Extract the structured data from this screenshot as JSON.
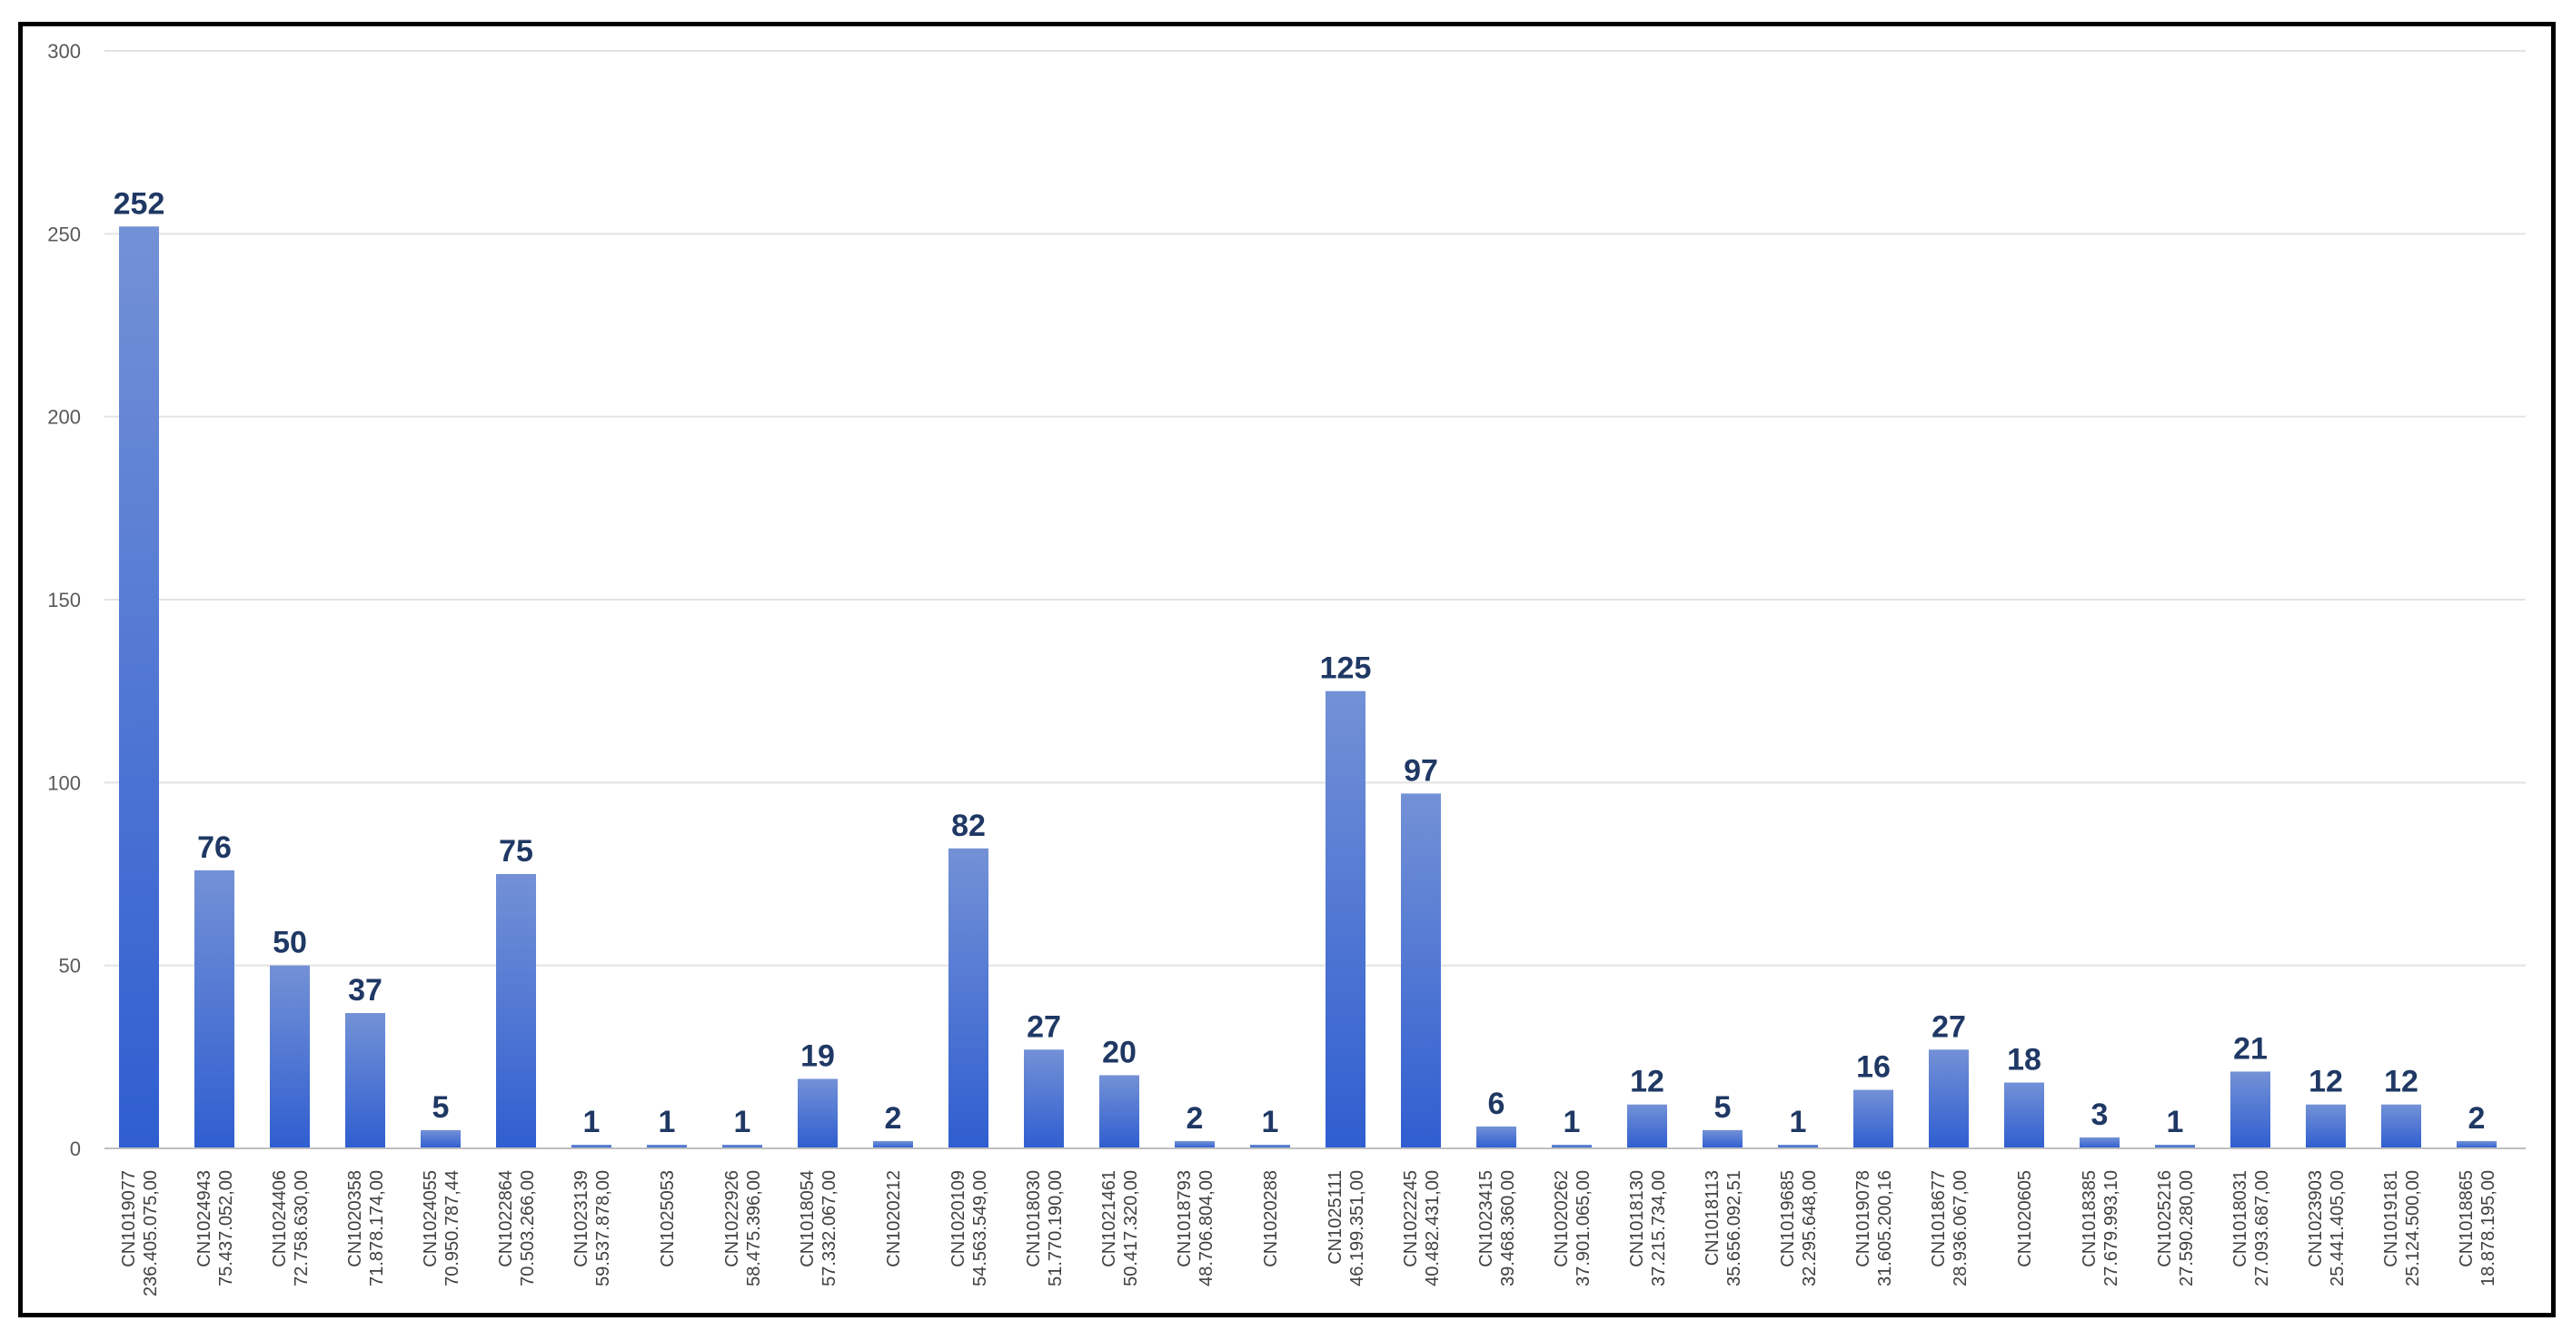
{
  "chart_data": {
    "type": "bar",
    "title": "",
    "xlabel": "",
    "ylabel": "",
    "ylim": [
      0,
      300
    ],
    "yticks": [
      0,
      50,
      100,
      150,
      200,
      250,
      300
    ],
    "grid": true,
    "legend": "none",
    "bar_color_top": "#7391d6",
    "bar_color_bottom": "#2f5ed0",
    "data_label_color": "#1f3864",
    "categories": [
      [
        "CN1019077",
        "236.405.075,00"
      ],
      [
        "CN1024943",
        "75.437.052,00"
      ],
      [
        "CN1024406",
        "72.758.630,00"
      ],
      [
        "CN1020358",
        "71.878.174,00"
      ],
      [
        "CN1024055",
        "70.950.787,44"
      ],
      [
        "CN1022864",
        "70.503.266,00"
      ],
      [
        "CN1023139",
        "59.537.878,00"
      ],
      [
        "CN1025053",
        ""
      ],
      [
        "CN1022926",
        "58.475.396,00"
      ],
      [
        "CN1018054",
        "57.332.067,00"
      ],
      [
        "CN1020212",
        ""
      ],
      [
        "CN1020109",
        "54.563.549,00"
      ],
      [
        "CN1018030",
        "51.770.190,00"
      ],
      [
        "CN1021461",
        "50.417.320,00"
      ],
      [
        "CN1018793",
        "48.706.804,00"
      ],
      [
        "CN1020288",
        ""
      ],
      [
        "CN1025111",
        "46.199.351,00"
      ],
      [
        "CN1022245",
        "40.482.431,00"
      ],
      [
        "CN1023415",
        "39.468.360,00"
      ],
      [
        "CN1020262",
        "37.901.065,00"
      ],
      [
        "CN1018130",
        "37.215.734,00"
      ],
      [
        "CN1018113",
        "35.656.092,51"
      ],
      [
        "CN1019685",
        "32.295.648,00"
      ],
      [
        "CN1019078",
        "31.605.200,16"
      ],
      [
        "CN1018677",
        "28.936.067,00"
      ],
      [
        "CN1020605",
        ""
      ],
      [
        "CN1018385",
        "27.679.993,10"
      ],
      [
        "CN1025216",
        "27.590.280,00"
      ],
      [
        "CN1018031",
        "27.093.687,00"
      ],
      [
        "CN1023903",
        "25.441.405,00"
      ],
      [
        "CN1019181",
        "25.124.500,00"
      ],
      [
        "CN1018865",
        "18.878.195,00"
      ]
    ],
    "values": [
      252,
      76,
      50,
      37,
      5,
      75,
      1,
      1,
      1,
      19,
      2,
      82,
      27,
      20,
      2,
      1,
      125,
      97,
      6,
      1,
      12,
      5,
      1,
      16,
      27,
      18,
      3,
      1,
      21,
      12,
      12,
      2
    ]
  }
}
